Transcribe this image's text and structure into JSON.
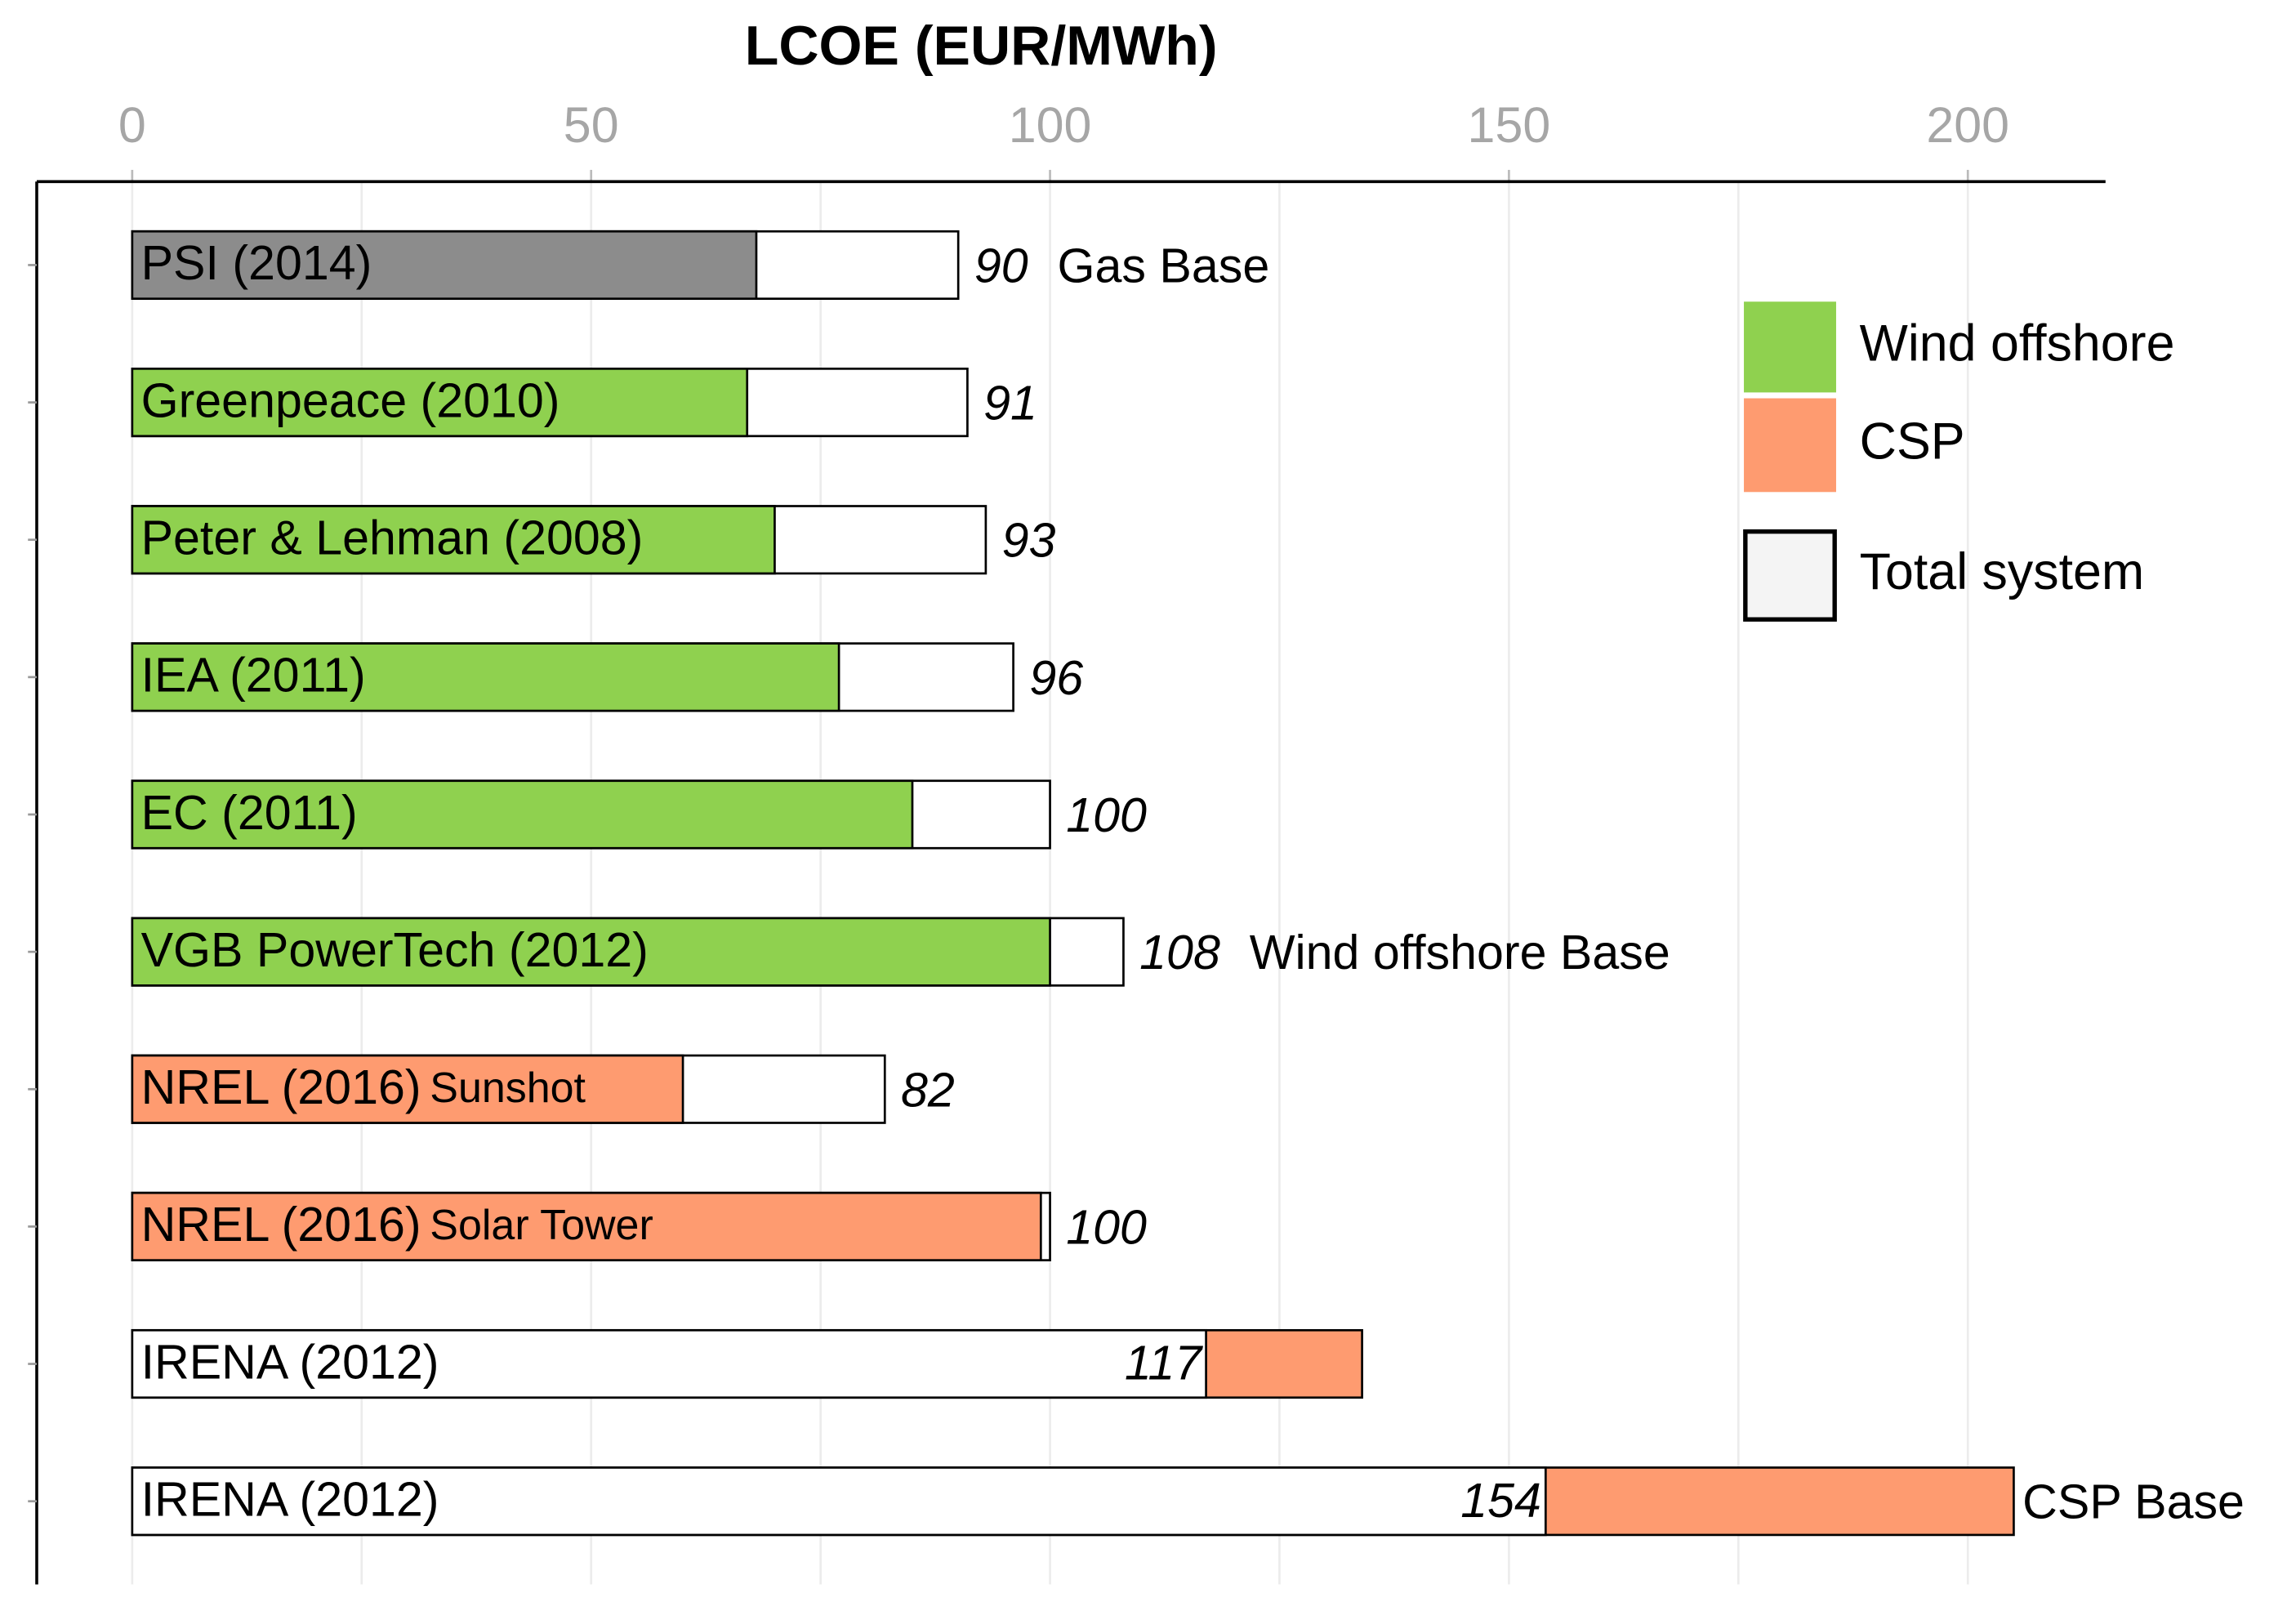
{
  "chart_data": {
    "type": "overlay-bar",
    "title": "LCOE (EUR/MWh)",
    "categories": [
      "PSI (2014)",
      "Greenpeace (2010)",
      "Peter & Lehman (2008)",
      "IEA (2011)",
      "EC (2011)",
      "VGB PowerTech (2012)",
      "NREL (2016)",
      "NREL (2016)",
      "IRENA (2012)",
      "IRENA (2012)"
    ],
    "category_suffixes": [
      null,
      null,
      null,
      null,
      null,
      null,
      "Sunshot",
      "Solar Tower",
      null,
      null
    ],
    "lcoe": [
      68,
      67,
      70,
      77,
      85,
      100,
      60,
      99,
      134,
      205
    ],
    "lcoe_colors": [
      "#8c8c8c",
      "#8fd14f",
      "#8fd14f",
      "#8fd14f",
      "#8fd14f",
      "#8fd14f",
      "#fe9b70",
      "#fe9b70",
      "#fe9b70",
      "#fe9b70"
    ],
    "total_system": [
      90,
      91,
      93,
      96,
      100,
      108,
      82,
      100,
      117,
      154
    ],
    "total_color": "#ffffff",
    "base_labels": [
      "Gas Base",
      null,
      null,
      null,
      null,
      "Wind offshore Base",
      null,
      null,
      null,
      "CSP Base"
    ],
    "legend": [
      {
        "name": "Wind offshore",
        "color": "#8fd14f"
      },
      {
        "name": "CSP",
        "color": "#fe9b70"
      },
      {
        "name": "Total system",
        "color": "#f4f4f4"
      }
    ],
    "xlim": [
      -10.4,
      215
    ],
    "xticks": [
      0,
      50,
      100,
      150,
      200
    ],
    "xminor": [
      25,
      75,
      125,
      175
    ],
    "grid": true
  }
}
